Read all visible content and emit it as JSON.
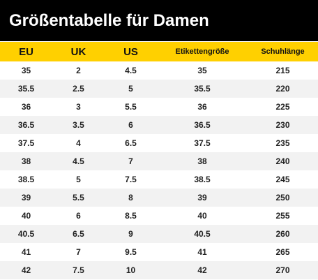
{
  "title": "Größentabelle für Damen",
  "colors": {
    "title_bar": "#000000",
    "title_text": "#ffffff",
    "header_row": "#ffd000",
    "stripe": "#f2f2f2"
  },
  "table": {
    "headers": [
      "EU",
      "UK",
      "US",
      "Etikettengröße",
      "Schuhlänge"
    ],
    "rows": [
      [
        "35",
        "2",
        "4.5",
        "35",
        "215"
      ],
      [
        "35.5",
        "2.5",
        "5",
        "35.5",
        "220"
      ],
      [
        "36",
        "3",
        "5.5",
        "36",
        "225"
      ],
      [
        "36.5",
        "3.5",
        "6",
        "36.5",
        "230"
      ],
      [
        "37.5",
        "4",
        "6.5",
        "37.5",
        "235"
      ],
      [
        "38",
        "4.5",
        "7",
        "38",
        "240"
      ],
      [
        "38.5",
        "5",
        "7.5",
        "38.5",
        "245"
      ],
      [
        "39",
        "5.5",
        "8",
        "39",
        "250"
      ],
      [
        "40",
        "6",
        "8.5",
        "40",
        "255"
      ],
      [
        "40.5",
        "6.5",
        "9",
        "40.5",
        "260"
      ],
      [
        "41",
        "7",
        "9.5",
        "41",
        "265"
      ],
      [
        "42",
        "7.5",
        "10",
        "42",
        "270"
      ]
    ]
  }
}
